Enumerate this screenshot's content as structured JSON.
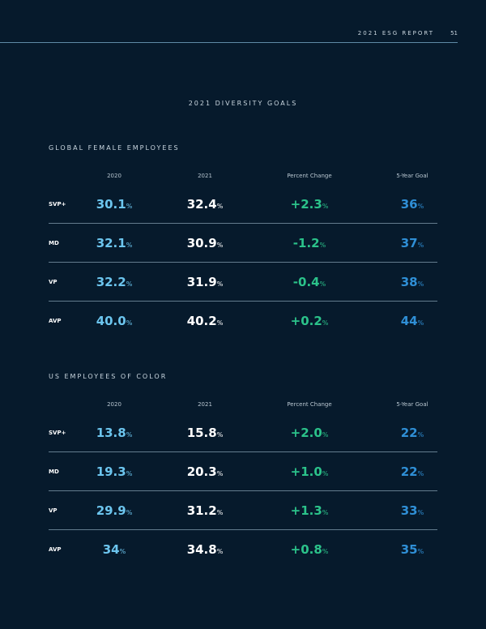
{
  "header": {
    "title": "2021 ESG REPORT",
    "page": "51"
  },
  "main_title": "2021 DIVERSITY GOALS",
  "columns": [
    "2020",
    "2021",
    "Percent Change",
    "5-Year Goal"
  ],
  "unit": "%",
  "colors": {
    "v2020": "#6cc5ee",
    "v2021": "#ffffff",
    "change": "#2bc28a",
    "goal": "#2f8fd6",
    "background": "#061a2c"
  },
  "sections": [
    {
      "title": "GLOBAL FEMALE EMPLOYEES",
      "rows": [
        {
          "label": "SVP+",
          "v2020": "30.1",
          "v2021": "32.4",
          "change": "+2.3",
          "goal": "36"
        },
        {
          "label": "MD",
          "v2020": "32.1",
          "v2021": "30.9",
          "change": "-1.2",
          "goal": "37"
        },
        {
          "label": "VP",
          "v2020": "32.2",
          "v2021": "31.9",
          "change": "-0.4",
          "goal": "38"
        },
        {
          "label": "AVP",
          "v2020": "40.0",
          "v2021": "40.2",
          "change": "+0.2",
          "goal": "44"
        }
      ]
    },
    {
      "title": "US EMPLOYEES OF COLOR",
      "rows": [
        {
          "label": "SVP+",
          "v2020": "13.8",
          "v2021": "15.8",
          "change": "+2.0",
          "goal": "22"
        },
        {
          "label": "MD",
          "v2020": "19.3",
          "v2021": "20.3",
          "change": "+1.0",
          "goal": "22"
        },
        {
          "label": "VP",
          "v2020": "29.9",
          "v2021": "31.2",
          "change": "+1.3",
          "goal": "33"
        },
        {
          "label": "AVP",
          "v2020": "34",
          "v2021": "34.8",
          "change": "+0.8",
          "goal": "35"
        }
      ]
    }
  ]
}
